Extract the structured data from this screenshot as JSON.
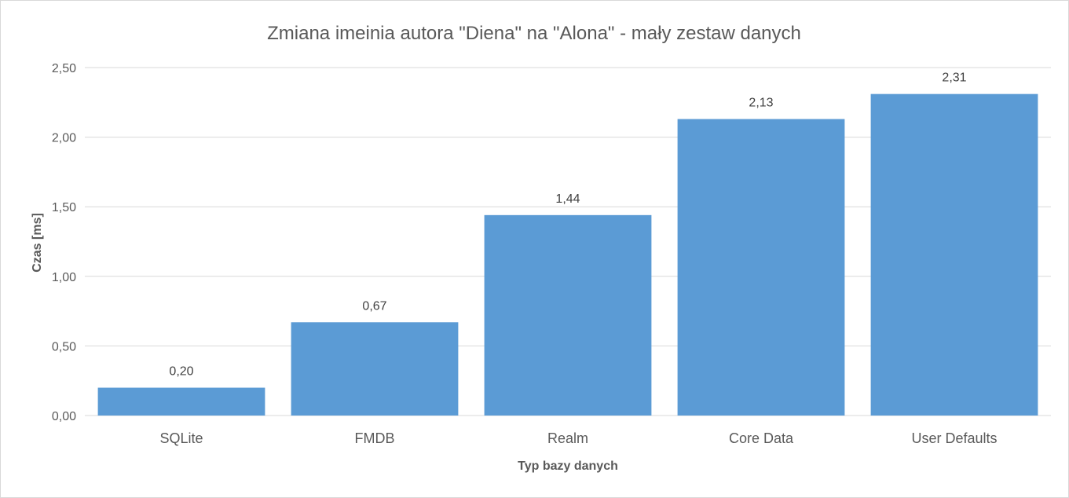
{
  "chart_data": {
    "type": "bar",
    "title": "Zmiana imeinia autora \"Diena\" na \"Alona\" - mały zestaw danych",
    "xlabel": "Typ bazy danych",
    "ylabel": "Czas [ms]",
    "categories": [
      "SQLite",
      "FMDB",
      "Realm",
      "Core Data",
      "User Defaults"
    ],
    "values": [
      0.2,
      0.67,
      1.44,
      2.13,
      2.31
    ],
    "data_labels": [
      "0,20",
      "0,67",
      "1,44",
      "2,13",
      "2,31"
    ],
    "ylim": [
      0,
      2.5
    ],
    "yticks": [
      0,
      0.5,
      1.0,
      1.5,
      2.0,
      2.5
    ],
    "ytick_labels": [
      "0,00",
      "0,50",
      "1,00",
      "1,50",
      "2,00",
      "2,50"
    ],
    "grid": true,
    "legend": "none",
    "bar_color": "#5b9bd5"
  }
}
